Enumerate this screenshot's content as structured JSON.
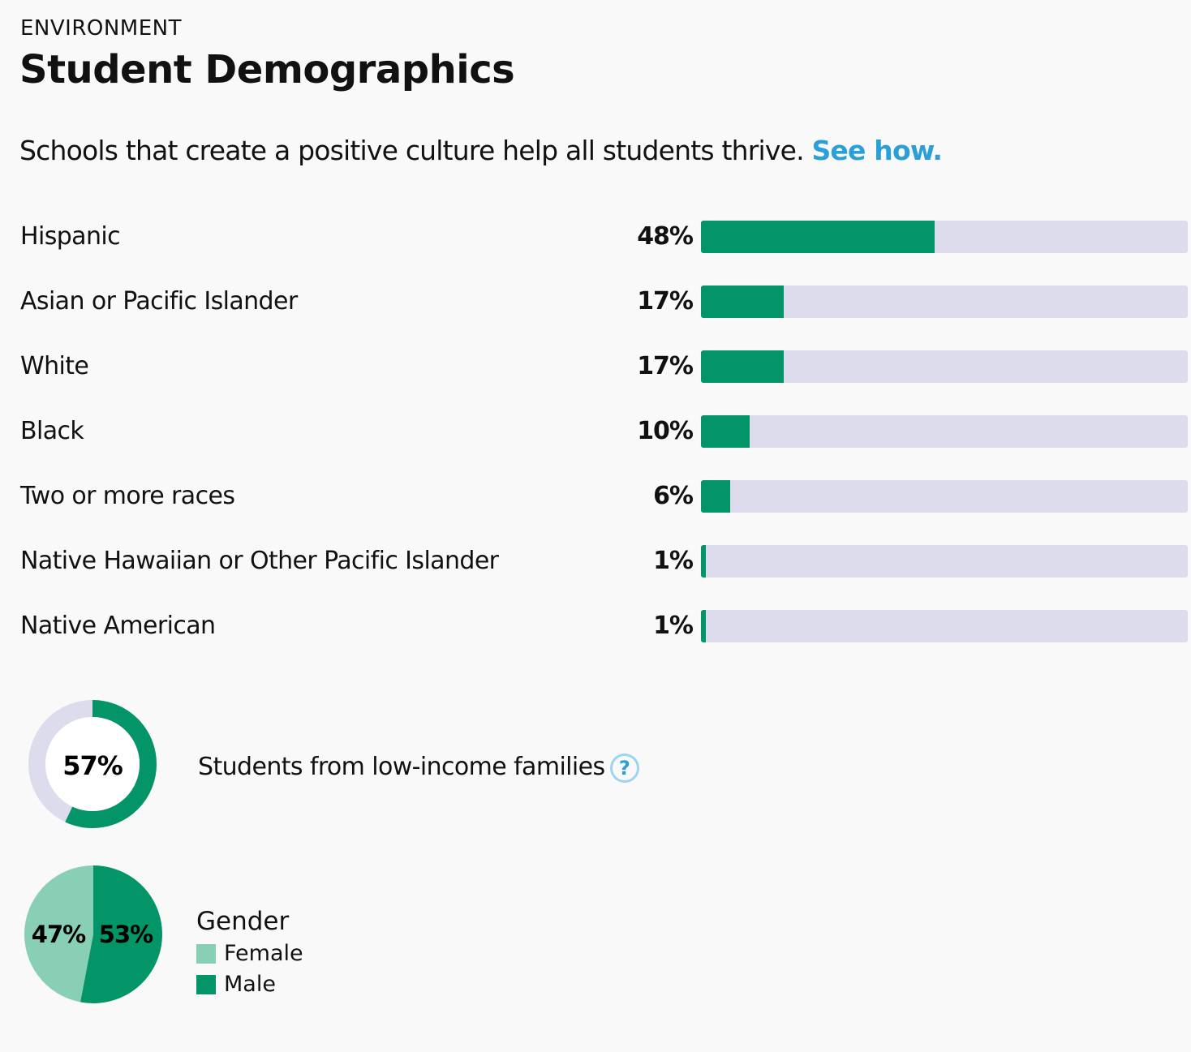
{
  "header": {
    "kicker": "ENVIRONMENT",
    "title": "Student Demographics",
    "intro": "Schools that create a positive culture help all students thrive.",
    "link": "See how."
  },
  "colors": {
    "fill": "#039467",
    "track": "#dcdcec",
    "female": "#88cfb6",
    "male": "#039467",
    "link": "#2a9fd8"
  },
  "chart_data": [
    {
      "type": "bar",
      "orientation": "horizontal",
      "categories": [
        "Hispanic",
        "Asian or Pacific Islander",
        "White",
        "Black",
        "Two or more races",
        "Native Hawaiian or Other Pacific Islander",
        "Native American"
      ],
      "values": [
        48,
        17,
        17,
        10,
        6,
        1,
        1
      ],
      "labels": [
        "48%",
        "17%",
        "17%",
        "10%",
        "6%",
        "1%",
        "1%"
      ],
      "xlim": [
        0,
        100
      ]
    },
    {
      "type": "pie",
      "variant": "donut",
      "title": "Students from low-income families",
      "value": 57,
      "label": "57%",
      "help_icon": "question-circle-icon"
    },
    {
      "type": "pie",
      "title": "Gender",
      "categories": [
        "Female",
        "Male"
      ],
      "values": [
        47,
        53
      ],
      "labels": [
        "47%",
        "53%"
      ]
    }
  ]
}
